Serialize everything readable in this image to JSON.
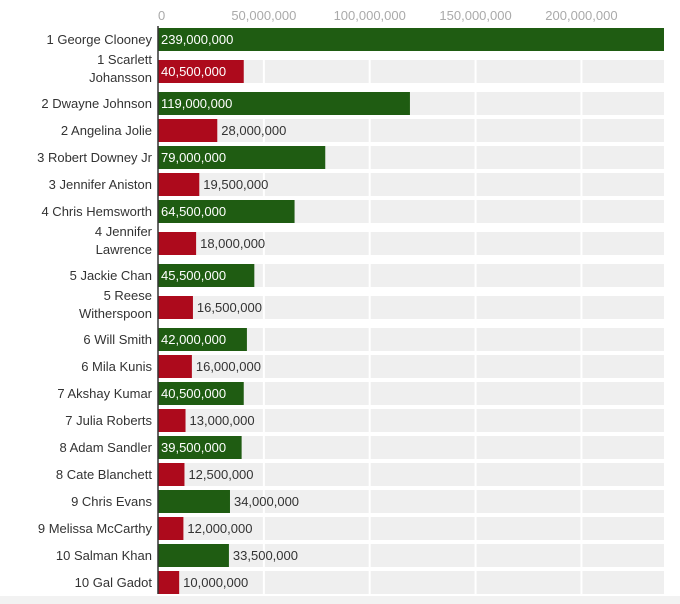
{
  "chart_data": {
    "type": "bar",
    "orientation": "horizontal",
    "title": "",
    "xlabel": "",
    "ylabel": "",
    "xlim": [
      0,
      239000000
    ],
    "x_ticks": [
      0,
      50000000,
      100000000,
      150000000,
      200000000
    ],
    "x_tick_labels": [
      "0",
      "50,000,000",
      "100,000,000",
      "150,000,000",
      "200,000,000"
    ],
    "grid": true,
    "colors": {
      "male": "#1f5c12",
      "female": "#ad0a1c",
      "row_background": "#efefef",
      "axis": "#333333"
    },
    "categories": [
      "1 George Clooney",
      "1 Scarlett Johansson",
      "2 Dwayne Johnson",
      "2 Angelina Jolie",
      "3 Robert Downey Jr",
      "3 Jennifer Aniston",
      "4 Chris Hemsworth",
      "4 Jennifer Lawrence",
      "5 Jackie Chan",
      "5 Reese Witherspoon",
      "6 Will Smith",
      "6 Mila Kunis",
      "7 Akshay Kumar",
      "7 Julia Roberts",
      "8 Adam Sandler",
      "8 Cate Blanchett",
      "9 Chris Evans",
      "9 Melissa McCarthy",
      "10 Salman Khan",
      "10 Gal Gadot"
    ],
    "category_lines": [
      [
        "1 George Clooney"
      ],
      [
        "1 Scarlett",
        "Johansson"
      ],
      [
        "2 Dwayne Johnson"
      ],
      [
        "2 Angelina Jolie"
      ],
      [
        "3 Robert Downey Jr"
      ],
      [
        "3 Jennifer Aniston"
      ],
      [
        "4 Chris Hemsworth"
      ],
      [
        "4 Jennifer",
        "Lawrence"
      ],
      [
        "5 Jackie Chan"
      ],
      [
        "5 Reese",
        "Witherspoon"
      ],
      [
        "6 Will Smith"
      ],
      [
        "6 Mila Kunis"
      ],
      [
        "7 Akshay Kumar"
      ],
      [
        "7 Julia Roberts"
      ],
      [
        "8 Adam Sandler"
      ],
      [
        "8 Cate Blanchett"
      ],
      [
        "9 Chris Evans"
      ],
      [
        "9 Melissa McCarthy"
      ],
      [
        "10 Salman Khan"
      ],
      [
        "10 Gal Gadot"
      ]
    ],
    "values": [
      239000000,
      40500000,
      119000000,
      28000000,
      79000000,
      19500000,
      64500000,
      18000000,
      45500000,
      16500000,
      42000000,
      16000000,
      40500000,
      13000000,
      39500000,
      12500000,
      34000000,
      12000000,
      33500000,
      10000000
    ],
    "value_labels": [
      "239,000,000",
      "40,500,000",
      "119,000,000",
      "28,000,000",
      "79,000,000",
      "19,500,000",
      "64,500,000",
      "18,000,000",
      "45,500,000",
      "16,500,000",
      "42,000,000",
      "16,000,000",
      "40,500,000",
      "13,000,000",
      "39,500,000",
      "12,500,000",
      "34,000,000",
      "12,000,000",
      "33,500,000",
      "10,000,000"
    ],
    "groups": [
      "male",
      "female",
      "male",
      "female",
      "male",
      "female",
      "male",
      "female",
      "male",
      "female",
      "male",
      "female",
      "male",
      "female",
      "male",
      "female",
      "male",
      "female",
      "male",
      "female"
    ]
  }
}
